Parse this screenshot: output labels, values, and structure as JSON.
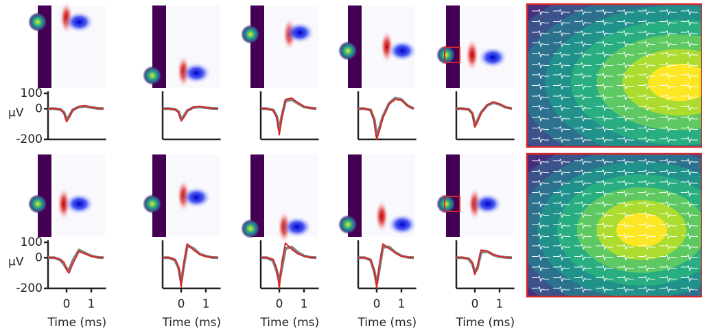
{
  "chart_data": [
    {
      "type": "line",
      "x": [
        -0.75,
        -0.5,
        -0.25,
        -0.1,
        0,
        0.1,
        0.25,
        0.5,
        0.75,
        1,
        1.25,
        1.5
      ],
      "xlim": [
        -0.75,
        1.6
      ],
      "ylim": [
        -200,
        100
      ],
      "yticks": [
        100,
        0,
        -200
      ],
      "ylabel": "μV",
      "series": [
        {
          "color": "#808080",
          "values": [
            0,
            0,
            -4,
            -25,
            -70,
            -50,
            -8,
            12,
            16,
            8,
            2,
            0
          ]
        },
        {
          "color": "#d62728",
          "values": [
            0,
            0,
            -5,
            -30,
            -85,
            -60,
            -10,
            15,
            20,
            10,
            3,
            0
          ]
        }
      ]
    },
    {
      "type": "line",
      "x": [
        -0.75,
        -0.5,
        -0.25,
        -0.1,
        0,
        0.1,
        0.25,
        0.5,
        0.75,
        1,
        1.25,
        1.5
      ],
      "xlim": [
        -0.75,
        1.6
      ],
      "ylim": [
        -200,
        100
      ],
      "series": [
        {
          "color": "#808080",
          "values": [
            0,
            0,
            -4,
            -20,
            -68,
            -50,
            -12,
            8,
            12,
            6,
            2,
            0
          ]
        },
        {
          "color": "#d62728",
          "values": [
            0,
            0,
            -5,
            -25,
            -80,
            -60,
            -15,
            10,
            15,
            8,
            2,
            0
          ]
        }
      ]
    },
    {
      "type": "line",
      "x": [
        -0.75,
        -0.5,
        -0.25,
        -0.1,
        0,
        0.1,
        0.25,
        0.5,
        0.75,
        1,
        1.25,
        1.5
      ],
      "xlim": [
        -0.75,
        1.6
      ],
      "ylim": [
        -200,
        100
      ],
      "series": [
        {
          "color": "#808080",
          "values": [
            0,
            0,
            -8,
            -50,
            -140,
            -50,
            50,
            60,
            35,
            12,
            4,
            0
          ]
        },
        {
          "color": "#d62728",
          "values": [
            0,
            0,
            -10,
            -60,
            -170,
            -60,
            60,
            70,
            40,
            15,
            5,
            0
          ]
        }
      ]
    },
    {
      "type": "line",
      "x": [
        -0.75,
        -0.5,
        -0.25,
        -0.1,
        0,
        0.1,
        0.25,
        0.5,
        0.75,
        1,
        1.25,
        1.5
      ],
      "xlim": [
        -0.75,
        1.6
      ],
      "ylim": [
        -200,
        100
      ],
      "series": [
        {
          "color": "#808080",
          "values": [
            0,
            0,
            -8,
            -70,
            -180,
            -130,
            -50,
            35,
            70,
            60,
            20,
            0
          ]
        },
        {
          "color": "#d62728",
          "values": [
            0,
            0,
            -10,
            -80,
            -200,
            -150,
            -60,
            30,
            60,
            55,
            20,
            0
          ]
        }
      ]
    },
    {
      "type": "line",
      "x": [
        -0.75,
        -0.5,
        -0.25,
        -0.1,
        0,
        0.1,
        0.25,
        0.5,
        0.75,
        1,
        1.25,
        1.5
      ],
      "xlim": [
        -0.75,
        1.6
      ],
      "ylim": [
        -200,
        100
      ],
      "series": [
        {
          "color": "#808080",
          "values": [
            0,
            0,
            -4,
            -30,
            -105,
            -80,
            -25,
            22,
            40,
            28,
            9,
            0
          ]
        },
        {
          "color": "#d62728",
          "values": [
            0,
            0,
            -5,
            -35,
            -120,
            -90,
            -30,
            25,
            45,
            30,
            10,
            0
          ]
        }
      ]
    },
    {
      "type": "line",
      "x": [
        -0.75,
        -0.5,
        -0.25,
        -0.1,
        0,
        0.1,
        0.25,
        0.5,
        0.75,
        1,
        1.25,
        1.5
      ],
      "xlim": [
        -0.75,
        1.6
      ],
      "ylim": [
        -200,
        100
      ],
      "yticks": [
        100,
        0,
        -200
      ],
      "ylabel": "μV",
      "xticks": [
        0,
        1
      ],
      "xlabel": "Time (ms)",
      "series": [
        {
          "color": "#808080",
          "values": [
            0,
            0,
            -15,
            -45,
            -70,
            -80,
            -20,
            50,
            30,
            12,
            3,
            0
          ]
        },
        {
          "color": "#d62728",
          "values": [
            0,
            0,
            -10,
            -30,
            -80,
            -100,
            -40,
            40,
            25,
            10,
            3,
            0
          ]
        }
      ]
    },
    {
      "type": "line",
      "x": [
        -0.75,
        -0.5,
        -0.25,
        -0.1,
        0,
        0.1,
        0.25,
        0.5,
        0.75,
        1,
        1.25,
        1.5
      ],
      "xlim": [
        -0.75,
        1.6
      ],
      "ylim": [
        -200,
        100
      ],
      "xticks": [
        0,
        1
      ],
      "xlabel": "Time (ms)",
      "series": [
        {
          "color": "#808080",
          "values": [
            0,
            0,
            -15,
            -70,
            -160,
            -60,
            80,
            60,
            25,
            10,
            2,
            0
          ]
        },
        {
          "color": "#d62728",
          "values": [
            0,
            0,
            -10,
            -60,
            -190,
            -40,
            90,
            50,
            20,
            8,
            2,
            0
          ]
        }
      ]
    },
    {
      "type": "line",
      "x": [
        -0.75,
        -0.5,
        -0.25,
        -0.1,
        0,
        0.1,
        0.25,
        0.5,
        0.75,
        1,
        1.25,
        1.5
      ],
      "xlim": [
        -0.75,
        1.6
      ],
      "ylim": [
        -200,
        100
      ],
      "xticks": [
        0,
        1
      ],
      "xlabel": "Time (ms)",
      "series": [
        {
          "color": "#808080",
          "values": [
            0,
            0,
            -20,
            -90,
            -150,
            -70,
            60,
            70,
            35,
            12,
            3,
            0
          ]
        },
        {
          "color": "#d62728",
          "values": [
            0,
            0,
            -10,
            -70,
            -200,
            -30,
            95,
            55,
            25,
            10,
            3,
            0
          ]
        }
      ]
    },
    {
      "type": "line",
      "x": [
        -0.75,
        -0.5,
        -0.25,
        -0.1,
        0,
        0.1,
        0.25,
        0.5,
        0.75,
        1,
        1.25,
        1.5
      ],
      "xlim": [
        -0.75,
        1.6
      ],
      "ylim": [
        -200,
        100
      ],
      "xticks": [
        0,
        1
      ],
      "xlabel": "Time (ms)",
      "series": [
        {
          "color": "#808080",
          "values": [
            0,
            0,
            -15,
            -90,
            -170,
            -80,
            70,
            70,
            35,
            12,
            3,
            0
          ]
        },
        {
          "color": "#d62728",
          "values": [
            0,
            0,
            -10,
            -80,
            -200,
            -50,
            90,
            60,
            30,
            10,
            3,
            0
          ]
        }
      ]
    },
    {
      "type": "line",
      "x": [
        -0.75,
        -0.5,
        -0.25,
        -0.1,
        0,
        0.1,
        0.25,
        0.5,
        0.75,
        1,
        1.25,
        1.5
      ],
      "xlim": [
        -0.75,
        1.6
      ],
      "ylim": [
        -200,
        100
      ],
      "xticks": [
        0,
        1
      ],
      "xlabel": "Time (ms)",
      "series": [
        {
          "color": "#808080",
          "values": [
            0,
            0,
            -8,
            -40,
            -95,
            -70,
            35,
            40,
            18,
            7,
            2,
            0
          ]
        },
        {
          "color": "#d62728",
          "values": [
            0,
            0,
            -5,
            -30,
            -110,
            -60,
            50,
            45,
            20,
            8,
            2,
            0
          ]
        }
      ]
    }
  ]
}
